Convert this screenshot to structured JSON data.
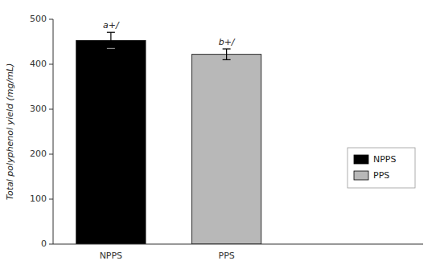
{
  "chart_data": {
    "type": "bar",
    "categories": [
      "NPPS",
      "PPS"
    ],
    "values": [
      453,
      422
    ],
    "errors": [
      18,
      12
    ],
    "colors": [
      "#000000",
      "#b8b8b8"
    ],
    "ylabel": "Total polyphenol yield (mg/mL)",
    "ylim": [
      0,
      500
    ],
    "yticks": [
      0,
      100,
      200,
      300,
      400,
      500
    ],
    "annotations": [
      "a+/",
      "b+/"
    ],
    "legend": "lower right",
    "grid": false
  }
}
